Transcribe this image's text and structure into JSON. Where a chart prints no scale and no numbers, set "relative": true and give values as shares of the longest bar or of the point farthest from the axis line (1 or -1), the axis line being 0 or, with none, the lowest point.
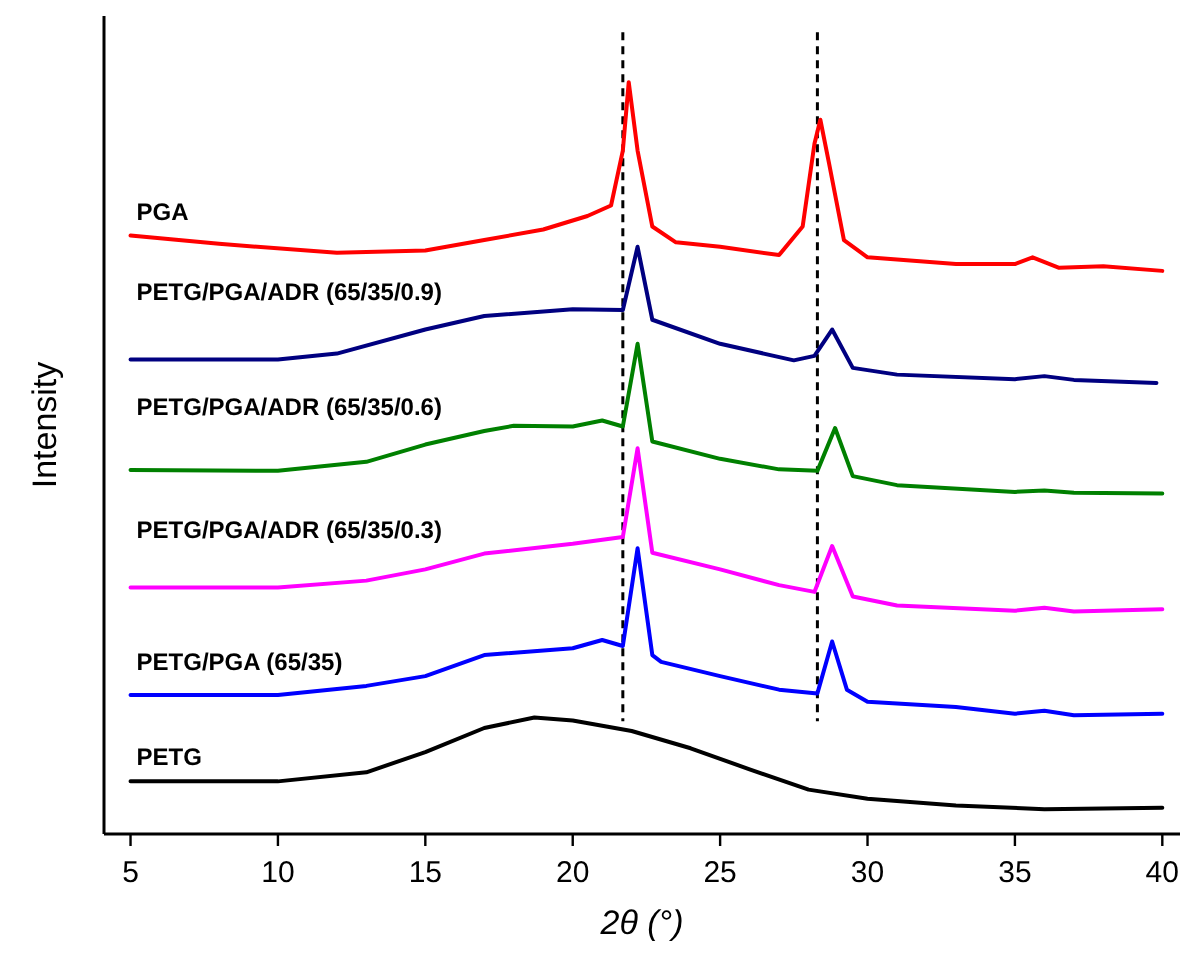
{
  "chart_data": {
    "type": "line",
    "relative": true,
    "xlabel": "2θ (°)",
    "ylabel": "Intensity",
    "xlim": [
      4.1,
      40.6
    ],
    "xticks": [
      5,
      10,
      15,
      20,
      25,
      30,
      35,
      40
    ],
    "line_style": "solid",
    "marker": "none",
    "grid": false,
    "series": [
      {
        "name": "PETG",
        "color": "#000000",
        "x": [
          5,
          10,
          13,
          15,
          17,
          18.7,
          20,
          22,
          24,
          26,
          28,
          30,
          33,
          36,
          40
        ],
        "values": [
          0.07,
          0.07,
          0.082,
          0.109,
          0.141,
          0.155,
          0.151,
          0.137,
          0.114,
          0.086,
          0.059,
          0.047,
          0.038,
          0.033,
          0.035
        ]
      },
      {
        "name": "PETG/PGA (65/35)",
        "color": "#0000ff",
        "x": [
          5,
          10,
          13,
          15,
          17,
          20,
          21,
          21.7,
          22.2,
          22.7,
          23,
          25,
          27,
          28.3,
          28.8,
          29.3,
          30,
          33,
          35,
          36,
          37,
          40
        ],
        "values": [
          0.185,
          0.185,
          0.197,
          0.21,
          0.238,
          0.247,
          0.258,
          0.25,
          0.38,
          0.238,
          0.229,
          0.21,
          0.192,
          0.187,
          0.256,
          0.192,
          0.176,
          0.169,
          0.16,
          0.164,
          0.158,
          0.16
        ]
      },
      {
        "name": "PETG/PGA/ADR (65/35/0.3)",
        "color": "#ff00ff",
        "x": [
          5,
          10,
          13,
          15,
          17,
          20,
          21.7,
          22.2,
          22.7,
          25,
          27,
          28.2,
          28.8,
          29.5,
          31,
          35,
          36,
          37,
          40
        ],
        "values": [
          0.328,
          0.328,
          0.337,
          0.352,
          0.373,
          0.386,
          0.395,
          0.513,
          0.374,
          0.352,
          0.331,
          0.322,
          0.383,
          0.316,
          0.304,
          0.297,
          0.301,
          0.296,
          0.299
        ]
      },
      {
        "name": "PETG/PGA/ADR (65/35/0.6)",
        "color": "#008000",
        "x": [
          5,
          10,
          13,
          15,
          17,
          18,
          20,
          21,
          21.7,
          22.2,
          22.7,
          25,
          27,
          28.3,
          28.9,
          29.5,
          31,
          35,
          36,
          37,
          40
        ],
        "values": [
          0.484,
          0.483,
          0.495,
          0.518,
          0.536,
          0.543,
          0.542,
          0.55,
          0.542,
          0.652,
          0.522,
          0.499,
          0.485,
          0.483,
          0.54,
          0.476,
          0.464,
          0.455,
          0.457,
          0.454,
          0.453
        ]
      },
      {
        "name": "PETG/PGA/ADR (65/35/0.9)",
        "color": "#000080",
        "x": [
          5,
          10,
          12,
          15,
          17,
          20,
          21.7,
          22.2,
          22.7,
          25,
          27.5,
          28.2,
          28.8,
          29.5,
          31,
          35,
          36,
          37,
          39.8
        ],
        "values": [
          0.631,
          0.631,
          0.639,
          0.671,
          0.689,
          0.698,
          0.697,
          0.781,
          0.684,
          0.652,
          0.63,
          0.636,
          0.671,
          0.62,
          0.611,
          0.605,
          0.609,
          0.604,
          0.6
        ]
      },
      {
        "name": "PGA",
        "color": "#ff0000",
        "x": [
          5,
          8,
          12,
          15,
          17,
          19,
          20.5,
          21.3,
          21.7,
          21.9,
          22.2,
          22.7,
          23.5,
          25,
          27,
          27.8,
          28.2,
          28.4,
          28.7,
          29.2,
          30,
          33,
          35,
          35.6,
          36.5,
          38,
          40
        ],
        "values": [
          0.796,
          0.785,
          0.773,
          0.776,
          0.79,
          0.804,
          0.822,
          0.836,
          0.909,
          1.0,
          0.909,
          0.808,
          0.787,
          0.781,
          0.77,
          0.808,
          0.918,
          0.95,
          0.891,
          0.79,
          0.767,
          0.758,
          0.758,
          0.767,
          0.753,
          0.755,
          0.749
        ]
      }
    ],
    "ref_lines": [
      {
        "axis": "x",
        "value": 21.7,
        "color": "#000000",
        "line_style": "dashed"
      },
      {
        "axis": "x",
        "value": 28.3,
        "color": "#000000",
        "line_style": "dashed"
      }
    ]
  }
}
